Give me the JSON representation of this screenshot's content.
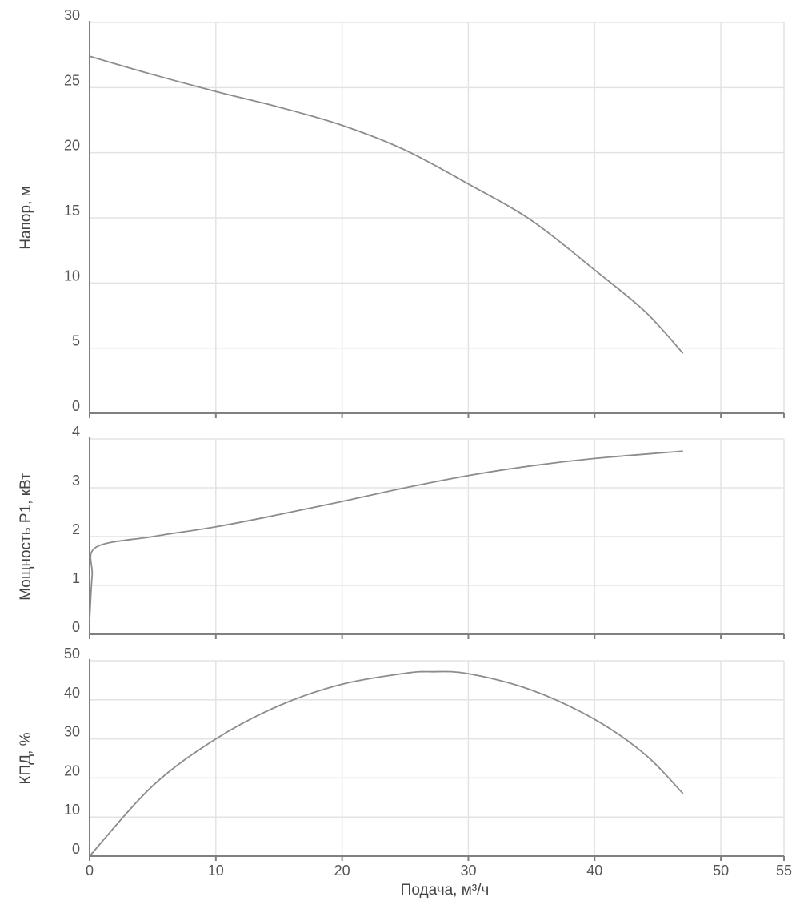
{
  "chart_data": [
    {
      "type": "line",
      "ylabel": "Напор, м",
      "ylim": [
        0,
        30
      ],
      "yticks": [
        0,
        5,
        10,
        15,
        20,
        25,
        30
      ],
      "xlim": [
        0,
        55
      ],
      "grid": true,
      "series": [
        {
          "color": "#8c8c8c",
          "x": [
            0,
            5,
            10,
            15,
            20,
            25,
            30,
            35,
            40,
            44,
            47
          ],
          "y": [
            27.4,
            26.0,
            24.7,
            23.5,
            22.1,
            20.2,
            17.6,
            14.8,
            11.0,
            7.8,
            4.6
          ]
        }
      ]
    },
    {
      "type": "line",
      "ylabel": "Мощность P1, кВт",
      "ylim": [
        0,
        4
      ],
      "yticks": [
        0,
        1,
        2,
        3,
        4
      ],
      "xlim": [
        0,
        55
      ],
      "grid": true,
      "series": [
        {
          "color": "#8c8c8c",
          "x": [
            0,
            0.2,
            0.5,
            5,
            10,
            15,
            20,
            25,
            30,
            35,
            40,
            47
          ],
          "y": [
            0.3,
            1.2,
            1.78,
            2.0,
            2.2,
            2.45,
            2.72,
            3.0,
            3.25,
            3.45,
            3.6,
            3.75
          ]
        }
      ]
    },
    {
      "type": "line",
      "ylabel": "КПД, %",
      "xlabel": "Подача, м³/ч",
      "ylim": [
        0,
        50
      ],
      "yticks": [
        0,
        10,
        20,
        30,
        40,
        50
      ],
      "xlim": [
        0,
        55
      ],
      "xticks": [
        0,
        10,
        20,
        30,
        40,
        50,
        55
      ],
      "grid": true,
      "series": [
        {
          "color": "#8c8c8c",
          "x": [
            0,
            5,
            10,
            15,
            20,
            25,
            27,
            30,
            35,
            40,
            44,
            47
          ],
          "y": [
            0,
            18,
            30,
            38.5,
            44,
            46.8,
            47.2,
            46.7,
            42.5,
            35,
            26,
            16
          ]
        }
      ]
    }
  ]
}
